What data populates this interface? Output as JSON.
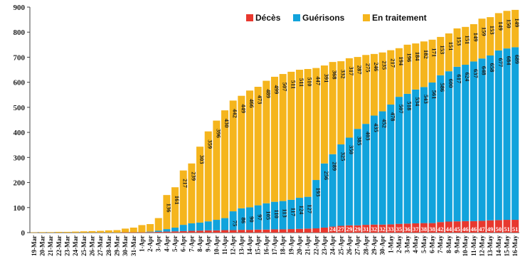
{
  "chart_data": {
    "type": "bar",
    "stacked": true,
    "title": "",
    "xlabel": "",
    "ylabel": "",
    "ylim": [
      0,
      900
    ],
    "yticks": [
      0,
      100,
      200,
      300,
      400,
      500,
      600,
      700,
      800,
      900
    ],
    "grid": false,
    "legend_position": "top-right",
    "categories": [
      "19-Mar",
      "20-Mar",
      "21-Mar",
      "22-Mar",
      "23-Mar",
      "24-Mar",
      "25-Mar",
      "26-Mar",
      "27-Mar",
      "28-Mar",
      "29-Mar",
      "30-Mar",
      "31-Mar",
      "1-Apr",
      "2-Apr",
      "3-Apr",
      "4-Apr",
      "5-Apr",
      "6-Apr",
      "7-Apr",
      "8-Apr",
      "9-Apr",
      "10-Apr",
      "11-Apr",
      "12-Apr",
      "13-Apr",
      "14-Apr",
      "15-Apr",
      "16-Apr",
      "17-Apr",
      "18-Apr",
      "19-Apr",
      "20-Apr",
      "21-Apr",
      "22-Apr",
      "23-Apr",
      "24-Apr",
      "25-Apr",
      "26-Apr",
      "27-Apr",
      "28-Apr",
      "29-Apr",
      "30-Apr",
      "1-May",
      "2-May",
      "3-May",
      "4-May",
      "5-May",
      "6-May",
      "7-May",
      "8-May",
      "9-May",
      "10-May",
      "11-May",
      "12-May",
      "13-May",
      "14-May",
      "15-May",
      "16-May"
    ],
    "series": [
      {
        "name": "Décès",
        "color": "#e8382e",
        "values": [
          0,
          0,
          0,
          0,
          0,
          0,
          0,
          0,
          0,
          0,
          0,
          1,
          1,
          1,
          2,
          3,
          4,
          5,
          6,
          7,
          8,
          9,
          9,
          10,
          10,
          11,
          11,
          12,
          12,
          13,
          13,
          14,
          15,
          16,
          17,
          20,
          24,
          27,
          29,
          29,
          31,
          32,
          32,
          33,
          35,
          36,
          37,
          38,
          38,
          42,
          44,
          45,
          46,
          46,
          47,
          49,
          50,
          51,
          51
        ],
        "labels_from_index": 36
      },
      {
        "name": "Guérisons",
        "color": "#11a3dc",
        "values": [
          0,
          0,
          0,
          0,
          0,
          0,
          0,
          0,
          0,
          0,
          0,
          0,
          0,
          0,
          2,
          5,
          10,
          15,
          25,
          30,
          32,
          36,
          42,
          48,
          75,
          86,
          90,
          97,
          105,
          110,
          113,
          117,
          124,
          127,
          193,
          256,
          289,
          325,
          350,
          385,
          403,
          435,
          452,
          478,
          507,
          518,
          534,
          543,
          561,
          586,
          600,
          617,
          624,
          637,
          648,
          658,
          677,
          684,
          689
        ],
        "labels_from_index": 24
      },
      {
        "name": "En traitement",
        "color": "#f5b51d",
        "values": [
          1,
          2,
          2,
          3,
          3,
          4,
          5,
          6,
          7,
          9,
          10,
          15,
          19,
          29,
          30,
          50,
          136,
          161,
          217,
          239,
          303,
          359,
          396,
          430,
          442,
          449,
          466,
          473,
          489,
          499,
          507,
          511,
          511,
          510,
          447,
          391,
          368,
          332,
          317,
          287,
          275,
          246,
          235,
          217,
          194,
          196,
          184,
          182,
          171,
          153,
          151,
          153,
          151,
          149,
          159,
          153,
          149,
          150,
          149
        ],
        "labels_from_index": 16
      }
    ]
  }
}
